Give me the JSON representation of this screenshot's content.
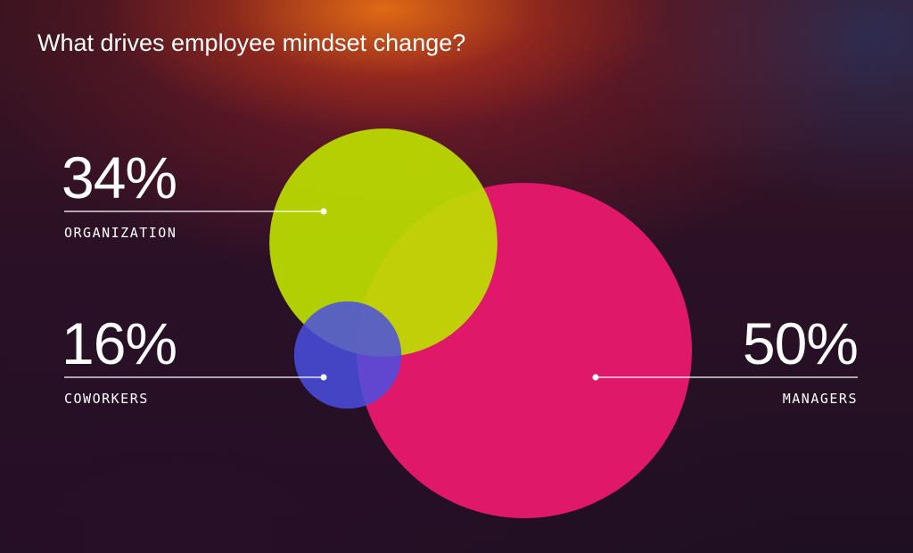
{
  "chart_data": {
    "type": "bubble",
    "title": "What drives employee mindset change?",
    "categories": [
      "ORGANIZATION",
      "COWORKERS",
      "MANAGERS"
    ],
    "values": [
      34,
      16,
      50
    ],
    "value_labels": [
      "34%",
      "16%",
      "50%"
    ],
    "colors": [
      "#bde000",
      "#4a4fe0",
      "#e0186a"
    ]
  }
}
